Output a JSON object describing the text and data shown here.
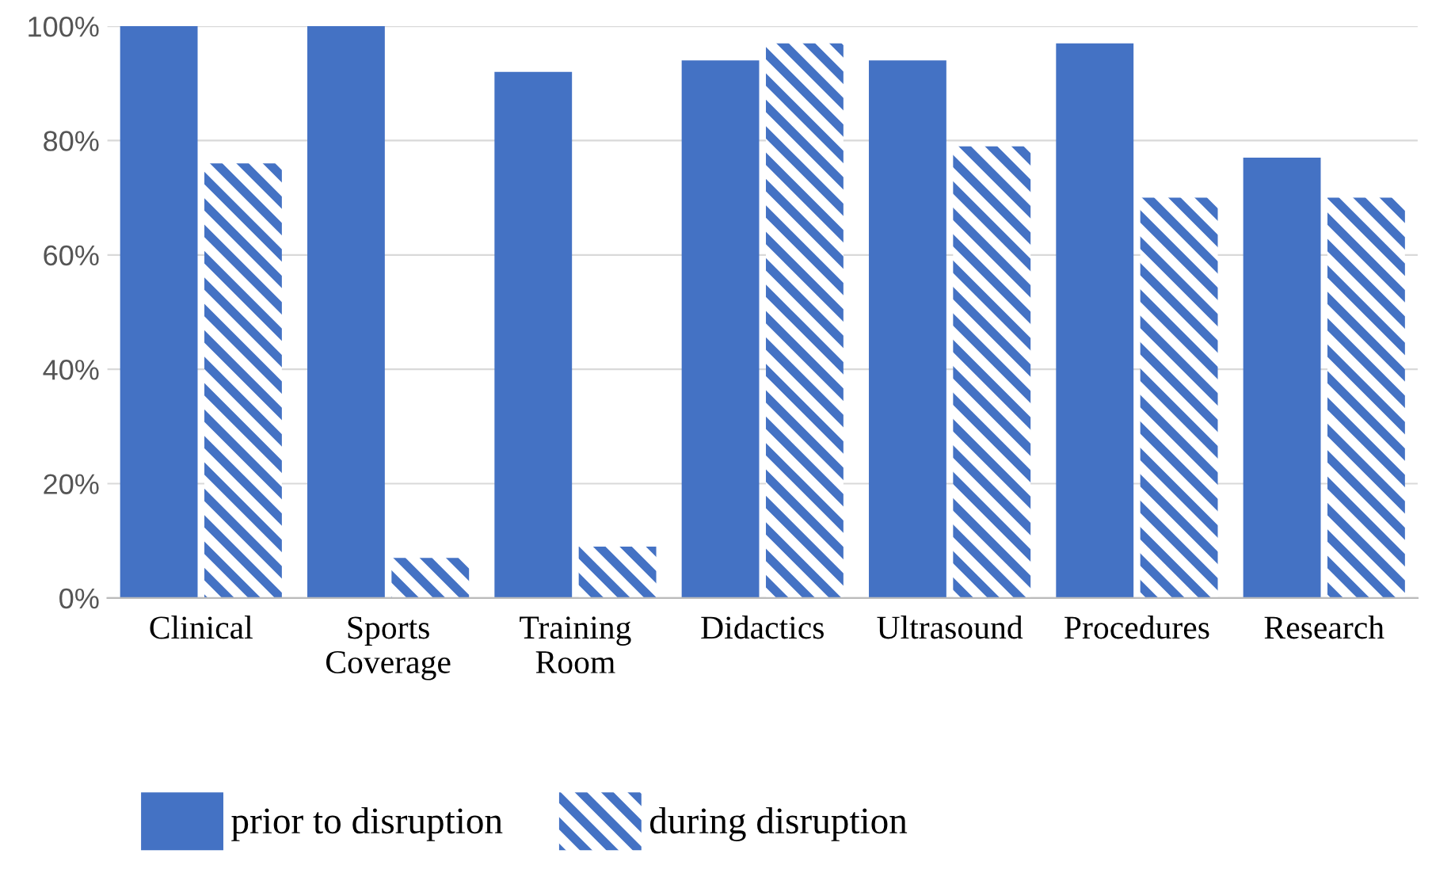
{
  "chart_data": {
    "type": "bar",
    "categories": [
      "Clinical",
      "Sports\nCoverage",
      "Training\nRoom",
      "Didactics",
      "Ultrasound",
      "Procedures",
      "Research"
    ],
    "series": [
      {
        "name": "prior to disruption",
        "color": "#4472c4",
        "values": [
          100,
          100,
          92,
          94,
          94,
          97,
          77
        ]
      },
      {
        "name": "during disruption",
        "color": "#4472c4",
        "values": [
          76,
          7,
          9,
          97,
          79,
          70,
          70
        ]
      }
    ],
    "ylim": [
      0,
      100
    ],
    "yticks": [
      {
        "value": 0,
        "label": "0%"
      },
      {
        "value": 20,
        "label": "20%"
      },
      {
        "value": 40,
        "label": "40%"
      },
      {
        "value": 60,
        "label": "60%"
      },
      {
        "value": 80,
        "label": "80%"
      },
      {
        "value": 100,
        "label": "100%"
      }
    ],
    "grid": "y",
    "legend": "bottom"
  }
}
